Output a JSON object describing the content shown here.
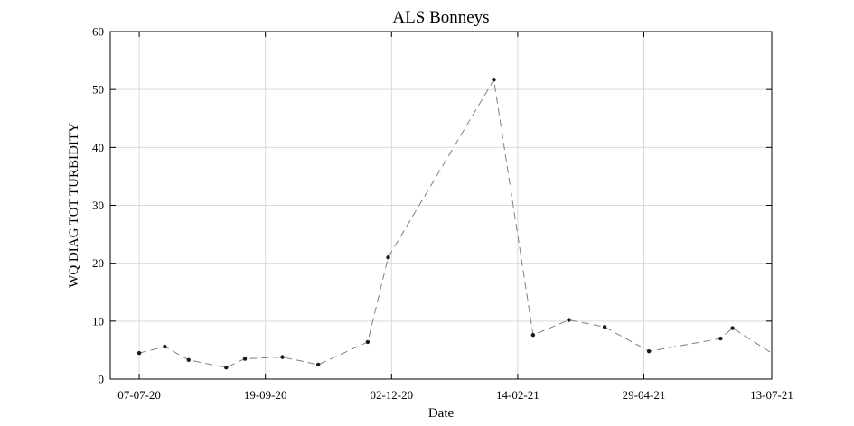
{
  "chart_data": {
    "type": "line",
    "title": "ALS Bonneys",
    "xlabel": "Date",
    "ylabel": "WQ DIAG TOT TURBIDITY",
    "xlim": [
      "2020-06-20",
      "2021-07-13"
    ],
    "ylim": [
      0,
      60
    ],
    "x_tick_labels": [
      "07-07-20",
      "19-09-20",
      "02-12-20",
      "14-02-21",
      "29-04-21",
      "13-07-21"
    ],
    "x_tick_dates": [
      "2020-07-07",
      "2020-09-19",
      "2020-12-02",
      "2021-02-14",
      "2021-04-29",
      "2021-07-13"
    ],
    "y_tick_labels": [
      "0",
      "10",
      "20",
      "30",
      "40",
      "50",
      "60"
    ],
    "y_ticks": [
      0,
      10,
      20,
      30,
      40,
      50,
      60
    ],
    "grid": true,
    "series": [
      {
        "color": "#808080",
        "marker_color": "#1a1a1a",
        "x": [
          "2020-07-07",
          "2020-07-22",
          "2020-08-05",
          "2020-08-27",
          "2020-09-07",
          "2020-09-29",
          "2020-10-20",
          "2020-11-18",
          "2020-11-30",
          "2021-01-31",
          "2021-02-23",
          "2021-03-16",
          "2021-04-06",
          "2021-05-02",
          "2021-06-13",
          "2021-06-20",
          "2021-07-13"
        ],
        "y": [
          4.5,
          5.6,
          3.3,
          2.0,
          3.5,
          3.8,
          2.5,
          6.4,
          21.0,
          51.7,
          7.6,
          10.2,
          9.0,
          4.8,
          7.0,
          8.8,
          4.5
        ],
        "markers": [
          true,
          true,
          true,
          true,
          true,
          true,
          true,
          true,
          true,
          true,
          true,
          true,
          true,
          true,
          true,
          true,
          false
        ]
      }
    ]
  }
}
